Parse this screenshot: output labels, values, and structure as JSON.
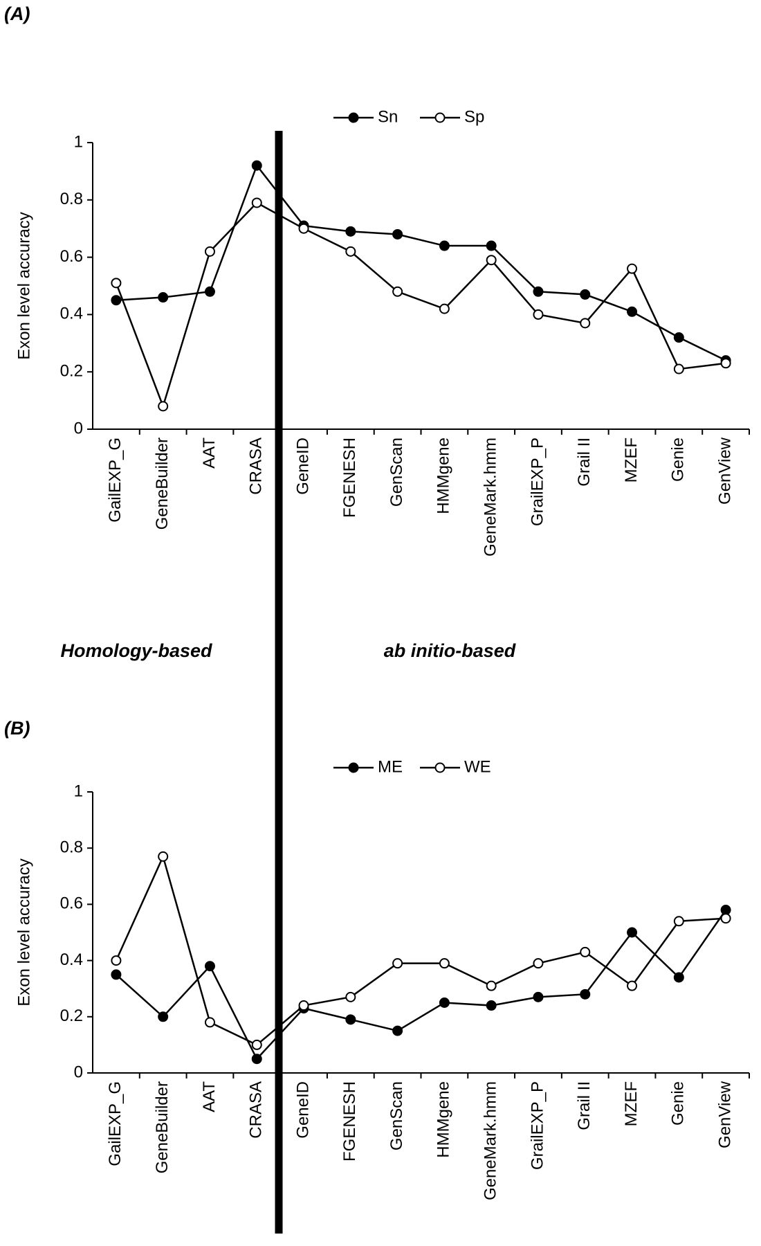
{
  "annotations": [
    "Homology-based",
    "ab initio-based"
  ],
  "chart_data": [
    {
      "type": "line",
      "label": "(A)",
      "y_label": "Exon level accuracy",
      "categories": [
        "GailEXP_G",
        "GeneBuilder",
        "AAT",
        "CRASA",
        "GeneID",
        "FGENESH",
        "GenScan",
        "HMMgene",
        "GeneMark.hmm",
        "GrailEXP_P",
        "Grail II",
        "MZEF",
        "Genie",
        "GenView"
      ],
      "series": [
        {
          "name": "Sn",
          "color": "#000000",
          "values": [
            0.45,
            0.46,
            0.48,
            0.92,
            0.71,
            0.69,
            0.68,
            0.64,
            0.64,
            0.48,
            0.47,
            0.41,
            0.32,
            0.24
          ]
        },
        {
          "name": "Sp",
          "color": "#ffffff",
          "values": [
            0.51,
            0.08,
            0.62,
            0.79,
            0.7,
            0.62,
            0.48,
            0.42,
            0.59,
            0.4,
            0.37,
            0.56,
            0.21,
            0.23
          ]
        }
      ],
      "ylim": [
        0,
        1
      ],
      "yticks": [
        0,
        0.2,
        0.4,
        0.6,
        0.8,
        1
      ]
    },
    {
      "type": "line",
      "label": "(B)",
      "y_label": "Exon level accuracy",
      "categories": [
        "GailEXP_G",
        "GeneBuilder",
        "AAT",
        "CRASA",
        "GeneID",
        "FGENESH",
        "GenScan",
        "HMMgene",
        "GeneMark.hmm",
        "GrailEXP_P",
        "Grail II",
        "MZEF",
        "Genie",
        "GenView"
      ],
      "series": [
        {
          "name": "ME",
          "color": "#000000",
          "values": [
            0.35,
            0.2,
            0.38,
            0.05,
            0.23,
            0.19,
            0.15,
            0.25,
            0.24,
            0.27,
            0.28,
            0.5,
            0.34,
            0.58
          ]
        },
        {
          "name": "WE",
          "color": "#ffffff",
          "values": [
            0.4,
            0.77,
            0.18,
            0.1,
            0.24,
            0.27,
            0.39,
            0.39,
            0.31,
            0.39,
            0.43,
            0.31,
            0.54,
            0.55
          ]
        }
      ],
      "ylim": [
        0,
        1
      ],
      "yticks": [
        0,
        0.2,
        0.4,
        0.6,
        0.8,
        1
      ]
    }
  ]
}
